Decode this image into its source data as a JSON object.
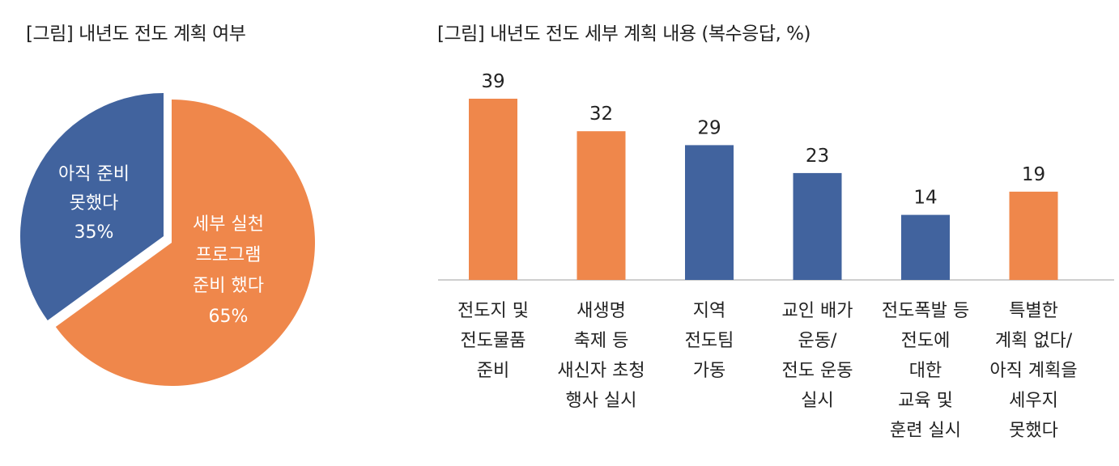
{
  "chart_data": [
    {
      "type": "pie",
      "title": "[그림] 내년도 전도 계획 여부",
      "slices": [
        {
          "label": [
            "아직 준비",
            "못했다",
            "35%"
          ],
          "value": 35,
          "color": "#41639E"
        },
        {
          "label": [
            "세부 실천",
            "프로그램",
            "준비 했다",
            "65%"
          ],
          "value": 65,
          "color": "#EF874B"
        }
      ]
    },
    {
      "type": "bar",
      "title": "[그림] 내년도 전도 세부 계획 내용 (복수응답, %)",
      "categories": [
        [
          "전도지 및",
          "전도물품",
          "준비"
        ],
        [
          "새생명",
          "축제 등",
          "새신자 초청",
          "행사 실시"
        ],
        [
          "지역",
          "전도팀",
          "가동"
        ],
        [
          "교인 배가",
          "운동/",
          "전도 운동",
          "실시"
        ],
        [
          "전도폭발 등",
          "전도에",
          "대한",
          "교육 및",
          "훈련 실시"
        ],
        [
          "특별한",
          "계획 없다/",
          "아직 계획을",
          "세우지",
          "못했다"
        ]
      ],
      "values": [
        39,
        32,
        29,
        23,
        14,
        19
      ],
      "colors": [
        "#EF874B",
        "#EF874B",
        "#41639E",
        "#41639E",
        "#41639E",
        "#EF874B"
      ],
      "ylim": [
        0,
        42
      ]
    }
  ]
}
